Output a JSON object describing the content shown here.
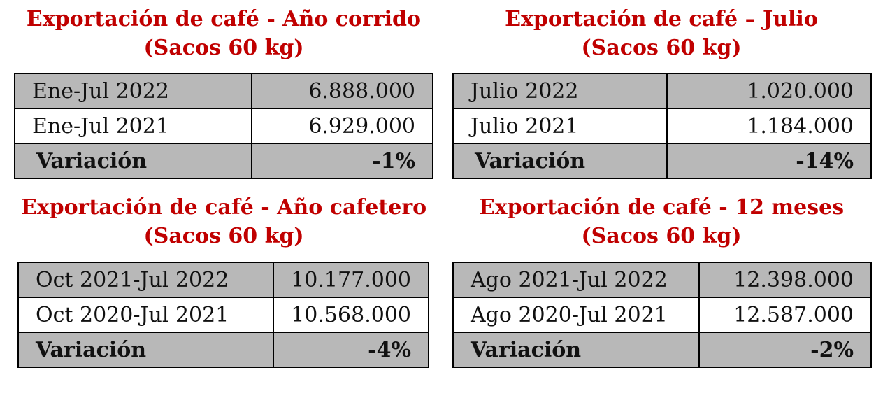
{
  "colors": {
    "title": "#c00000",
    "shaded_row": "#b8b8b8",
    "border": "#000000"
  },
  "panels": [
    {
      "title_line1": "Exportación de café - Año corrido",
      "title_line2": "(Sacos 60 kg)",
      "rows": [
        {
          "label": "Ene-Jul 2022",
          "value": "6.888.000"
        },
        {
          "label": "Ene-Jul 2021",
          "value": "6.929.000"
        },
        {
          "label": "Variación",
          "value": "-1%"
        }
      ]
    },
    {
      "title_line1": "Exportación de café – Julio",
      "title_line2": "(Sacos 60 kg)",
      "rows": [
        {
          "label": "Julio 2022",
          "value": "1.020.000"
        },
        {
          "label": "Julio 2021",
          "value": "1.184.000"
        },
        {
          "label": "Variación",
          "value": "-14%"
        }
      ]
    },
    {
      "title_line1": "Exportación de café - Año cafetero",
      "title_line2": "(Sacos 60 kg)",
      "rows": [
        {
          "label": "Oct 2021-Jul 2022",
          "value": "10.177.000"
        },
        {
          "label": "Oct 2020-Jul 2021",
          "value": "10.568.000"
        },
        {
          "label": "Variación",
          "value": "-4%"
        }
      ]
    },
    {
      "title_line1": "Exportación de café - 12 meses",
      "title_line2": "(Sacos 60 kg)",
      "rows": [
        {
          "label": "Ago 2021-Jul 2022",
          "value": "12.398.000"
        },
        {
          "label": "Ago 2020-Jul 2021",
          "value": "12.587.000"
        },
        {
          "label": "Variación",
          "value": "-2%"
        }
      ]
    }
  ]
}
